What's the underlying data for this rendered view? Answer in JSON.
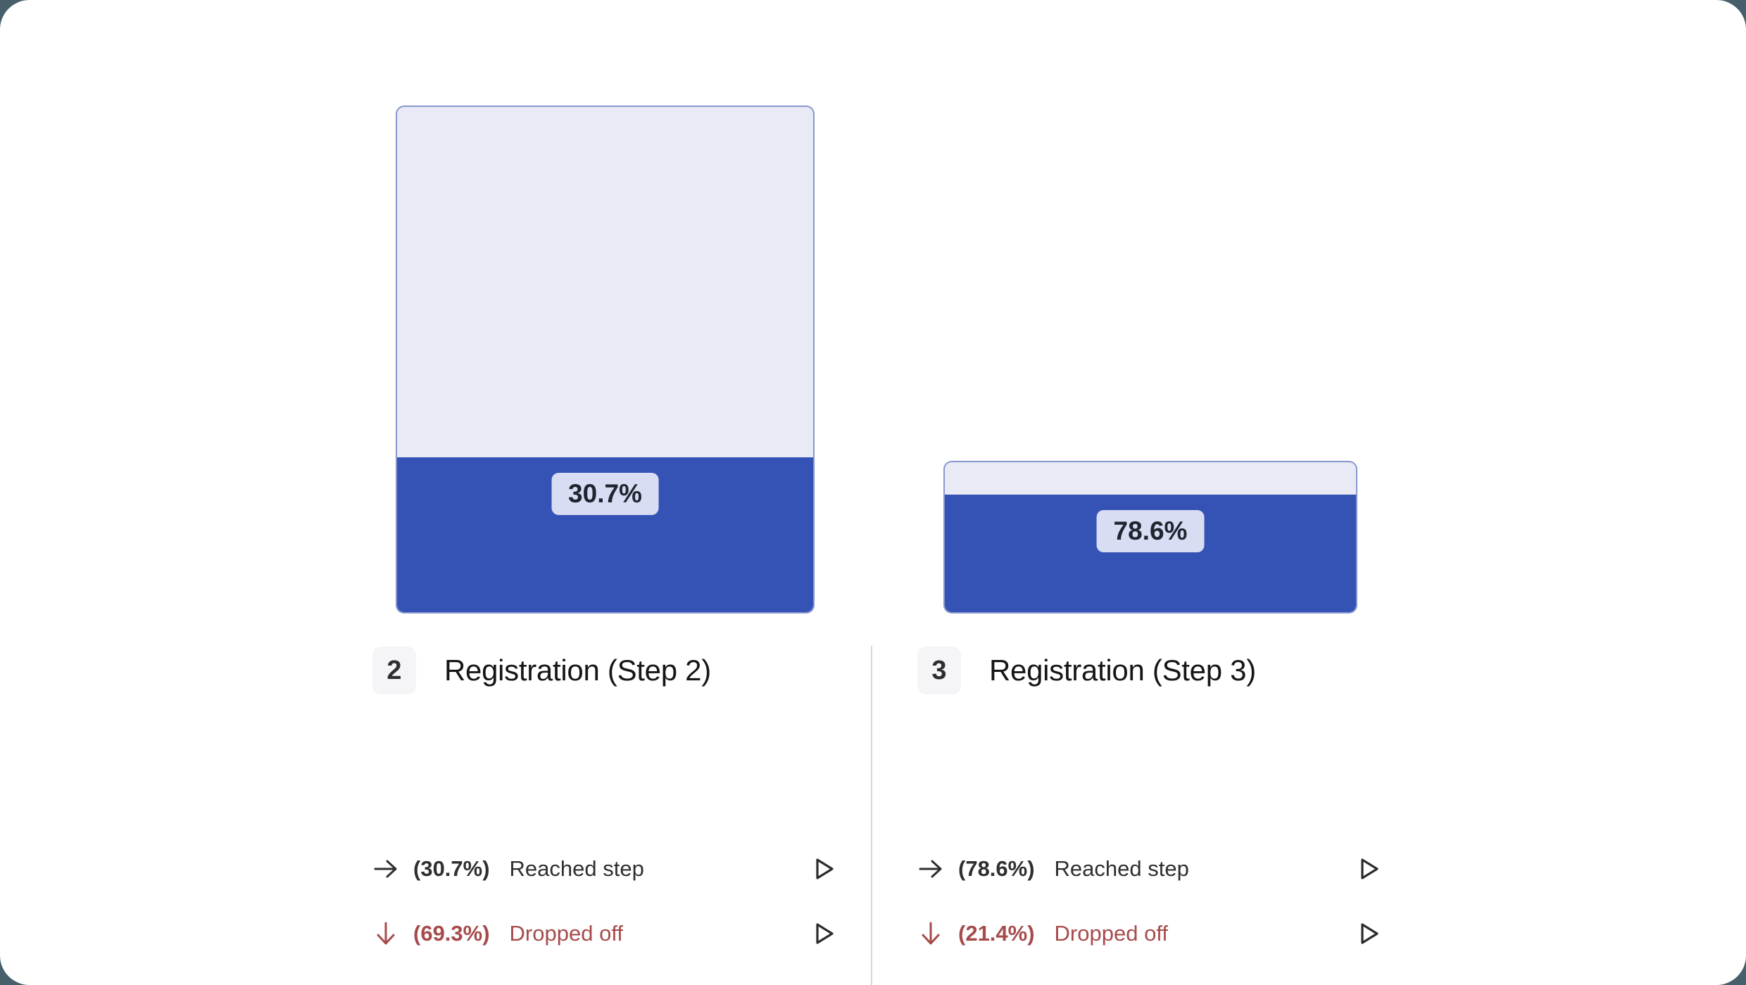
{
  "colors": {
    "page_background": "#465f6a",
    "card_background": "#ffffff",
    "funnel_fill_blue": "#3552b5",
    "funnel_track_lavender": "#e8eaf6",
    "bar_border": "#8997cf",
    "percent_chip_background": "#d8ddf4",
    "dropped_red": "#a64b4b",
    "reached_text_dark": "#2f2f2f",
    "divider_gray": "#d8d8dc"
  },
  "steps": [
    {
      "number": "2",
      "title": "Registration (Step 2)",
      "percent_chip": "30.7%",
      "fill_pct": 30.7,
      "reached_percent": "(30.7%)",
      "reached_label": "Reached step",
      "dropped_percent": "(69.3%)",
      "dropped_label": "Dropped off"
    },
    {
      "number": "3",
      "title": "Registration (Step 3)",
      "percent_chip": "78.6%",
      "fill_pct": 78.6,
      "reached_percent": "(78.6%)",
      "reached_label": "Reached step",
      "dropped_percent": "(21.4%)",
      "dropped_label": "Dropped off"
    }
  ],
  "chart_data": {
    "type": "bar",
    "subtype": "funnel",
    "title": "",
    "categories": [
      "Registration (Step 2)",
      "Registration (Step 3)"
    ],
    "series": [
      {
        "name": "Reached step (%)",
        "values": [
          30.7,
          78.6
        ]
      },
      {
        "name": "Dropped off (%)",
        "values": [
          69.3,
          21.4
        ]
      }
    ],
    "bar_total_height_pct_of_plot": [
      100,
      30.7
    ],
    "data_labels": [
      "30.7%",
      "78.6%"
    ],
    "xlabel": "",
    "ylabel": "",
    "grid": false,
    "legend_position": "none"
  }
}
